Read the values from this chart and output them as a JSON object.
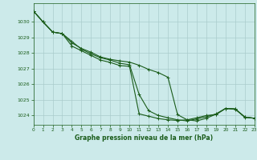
{
  "title": "Graphe pression niveau de la mer (hPa)",
  "background_color": "#cceaea",
  "grid_color": "#aacccc",
  "line_color": "#1a5c1a",
  "xlim": [
    0,
    23
  ],
  "ylim": [
    1023.4,
    1031.2
  ],
  "yticks": [
    1024,
    1025,
    1026,
    1027,
    1028,
    1029,
    1030
  ],
  "xticks": [
    0,
    1,
    2,
    3,
    4,
    5,
    6,
    7,
    8,
    9,
    10,
    11,
    12,
    13,
    14,
    15,
    16,
    17,
    18,
    19,
    20,
    21,
    22,
    23
  ],
  "series": [
    [
      1030.7,
      1030.0,
      1029.35,
      1029.25,
      1028.45,
      1028.15,
      1027.85,
      1027.55,
      1027.4,
      1027.2,
      1027.15,
      1024.1,
      1023.95,
      1023.8,
      1023.72,
      1023.68,
      1023.72,
      1023.85,
      1024.0,
      1024.05,
      1024.45,
      1024.4,
      1023.88,
      1023.82
    ],
    [
      1030.7,
      1030.0,
      1029.35,
      1029.25,
      1028.75,
      1028.25,
      1027.95,
      1027.7,
      1027.55,
      1027.35,
      1027.25,
      1025.35,
      1024.3,
      1024.0,
      1023.85,
      1023.72,
      1023.65,
      1023.78,
      1023.92,
      1024.1,
      1024.45,
      1024.42,
      1023.9,
      1023.82
    ],
    [
      1030.7,
      1030.0,
      1029.35,
      1029.25,
      1028.65,
      1028.3,
      1028.05,
      1027.75,
      1027.6,
      1027.5,
      1027.42,
      1027.22,
      1026.95,
      1026.75,
      1026.45,
      1024.05,
      1023.72,
      1023.65,
      1023.82,
      1024.08,
      1024.45,
      1024.42,
      1023.9,
      1023.82
    ]
  ]
}
